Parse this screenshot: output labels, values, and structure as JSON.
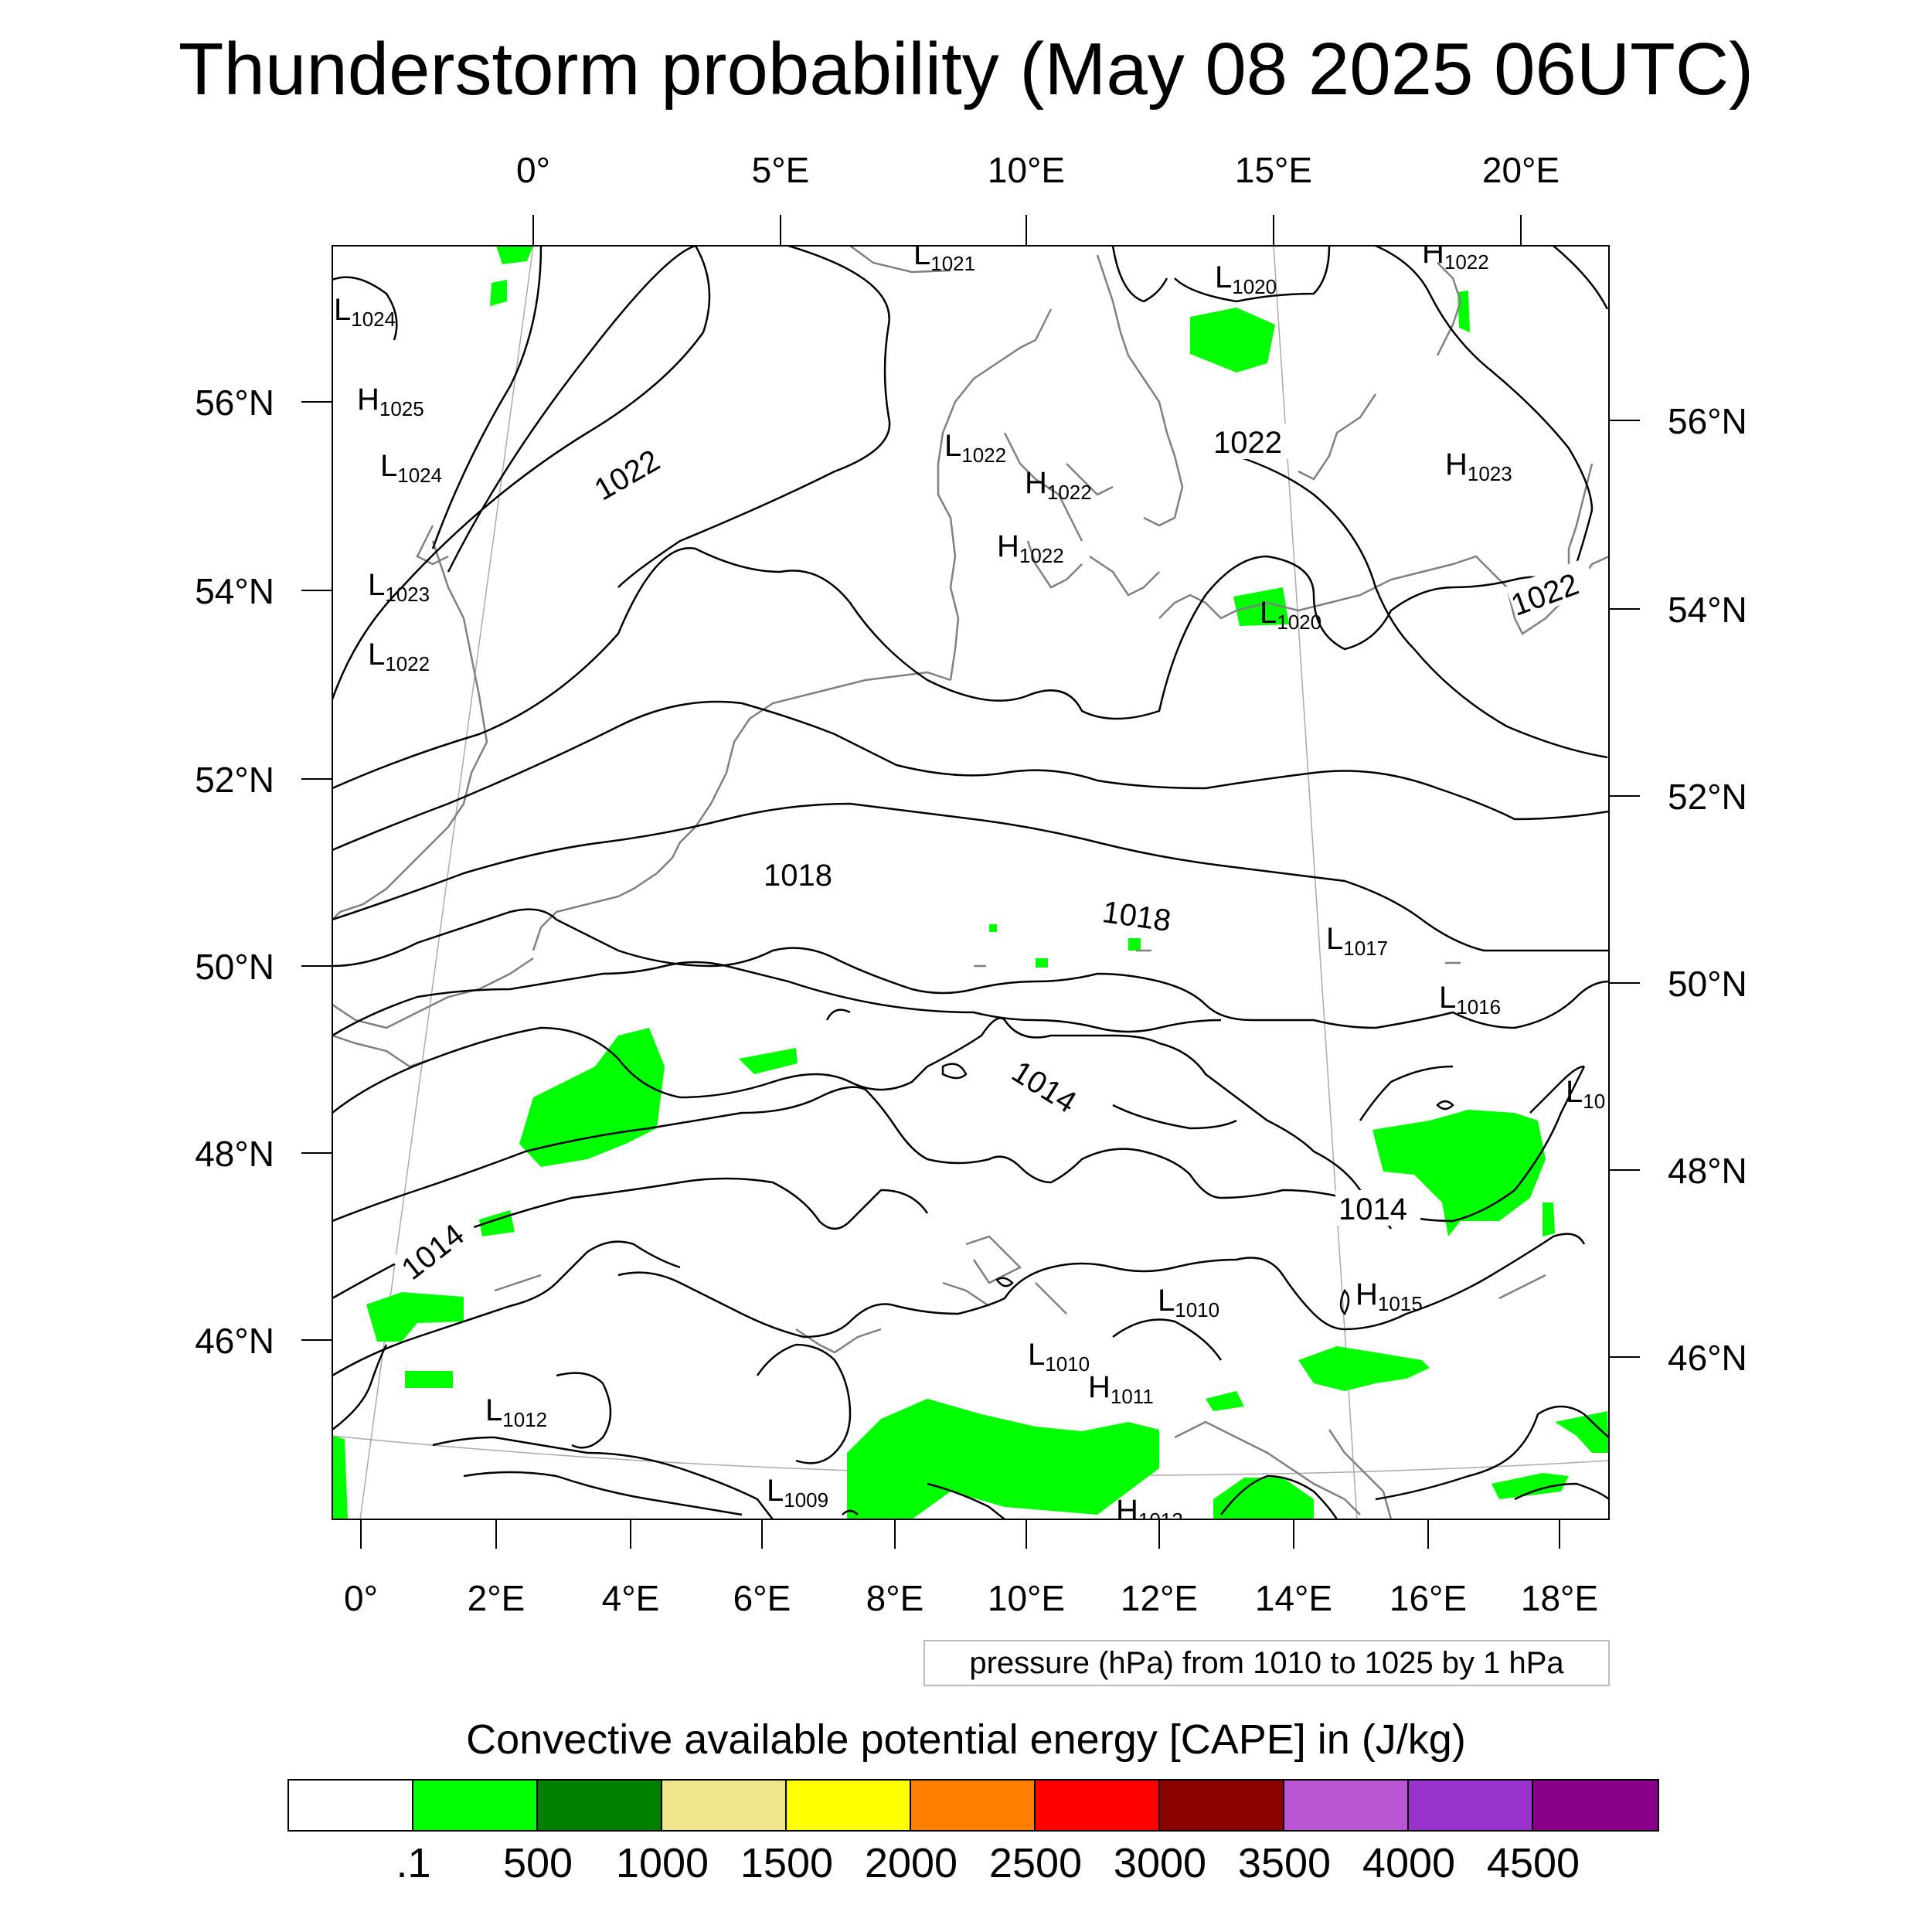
{
  "title": "Thunderstorm probability (May 08 2025 06UTC)",
  "top_lon_ticks": [
    "0°",
    "5°E",
    "10°E",
    "15°E",
    "20°E"
  ],
  "bottom_lon_ticks": [
    "0°",
    "2°E",
    "4°E",
    "6°E",
    "8°E",
    "10°E",
    "12°E",
    "14°E",
    "16°E",
    "18°E"
  ],
  "left_lat_ticks": [
    "56°N",
    "54°N",
    "52°N",
    "50°N",
    "48°N",
    "46°N"
  ],
  "right_lat_ticks": [
    "56°N",
    "54°N",
    "52°N",
    "50°N",
    "48°N",
    "46°N"
  ],
  "isobar_labels": [
    "1022",
    "1022",
    "1022",
    "1018",
    "1018",
    "1014",
    "1014",
    "1014"
  ],
  "pressure_centers": [
    {
      "type": "L",
      "value": "1021"
    },
    {
      "type": "L",
      "value": "1020"
    },
    {
      "type": "H",
      "value": "1022"
    },
    {
      "type": "L",
      "value": "1024"
    },
    {
      "type": "H",
      "value": "1025"
    },
    {
      "type": "L",
      "value": "1024"
    },
    {
      "type": "L",
      "value": "1022"
    },
    {
      "type": "H",
      "value": "1022"
    },
    {
      "type": "H",
      "value": "1022"
    },
    {
      "type": "H",
      "value": "1023"
    },
    {
      "type": "L",
      "value": "1023"
    },
    {
      "type": "L",
      "value": "1022"
    },
    {
      "type": "L",
      "value": "1020"
    },
    {
      "type": "L",
      "value": "1017"
    },
    {
      "type": "L",
      "value": "1016"
    },
    {
      "type": "L",
      "value": "10"
    },
    {
      "type": "H",
      "value": "1015"
    },
    {
      "type": "L",
      "value": "1010"
    },
    {
      "type": "L",
      "value": "1010"
    },
    {
      "type": "H",
      "value": "1011"
    },
    {
      "type": "L",
      "value": "1012"
    },
    {
      "type": "L",
      "value": "1009"
    },
    {
      "type": "H",
      "value": "1012"
    }
  ],
  "contour_info": "pressure (hPa) from 1010 to 1025 by 1 hPa",
  "colorbar": {
    "title": "Convective available potential energy [CAPE] in (J/kg)",
    "colors": [
      "#ffffff",
      "#00ff00",
      "#008000",
      "#f0e68c",
      "#ffff00",
      "#ff8000",
      "#ff0000",
      "#8b0000",
      "#ba55d3",
      "#9932cc",
      "#8b008b"
    ],
    "labels": [
      ".1",
      "500",
      "1000",
      "1500",
      "2000",
      "2500",
      "3000",
      "3500",
      "4000",
      "4500"
    ]
  },
  "cape_color": "#00ff00"
}
